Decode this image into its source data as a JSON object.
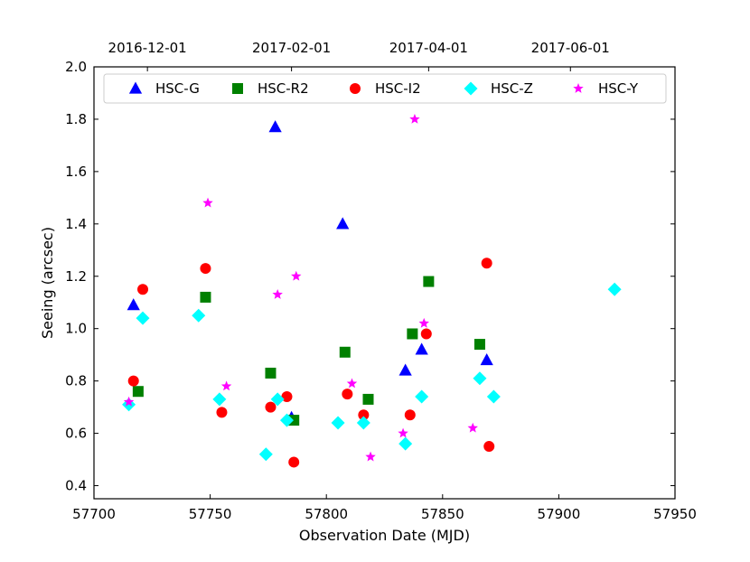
{
  "chart_data": {
    "type": "scatter",
    "title": "",
    "xlabel": "Observation Date (MJD)",
    "ylabel": "Seeing (arcsec)",
    "xlim": [
      57700,
      57950
    ],
    "ylim": [
      0.35,
      2.0
    ],
    "x_ticks": [
      57700,
      57750,
      57800,
      57850,
      57900,
      57950
    ],
    "y_ticks": [
      0.4,
      0.6,
      0.8,
      1.0,
      1.2,
      1.4,
      1.6,
      1.8,
      2.0
    ],
    "x_tick_labels": [
      "57700",
      "57750",
      "57800",
      "57850",
      "57900",
      "57950"
    ],
    "y_tick_labels": [
      "0.4",
      "0.6",
      "0.8",
      "1.0",
      "1.2",
      "1.4",
      "1.6",
      "1.8",
      "2.0"
    ],
    "top_axis": {
      "ticks": [
        "2016-12-01",
        "2017-02-01",
        "2017-04-01",
        "2017-06-01"
      ],
      "tick_mjd": [
        57723,
        57785,
        57844,
        57905
      ]
    },
    "grid": false,
    "legend_position": "top",
    "series": [
      {
        "name": "HSC-G",
        "marker": "triangle",
        "color": "#0000ff",
        "points": [
          [
            57717,
            1.09
          ],
          [
            57778,
            1.77
          ],
          [
            57785,
            0.66
          ],
          [
            57807,
            1.4
          ],
          [
            57834,
            0.84
          ],
          [
            57841,
            0.92
          ],
          [
            57869,
            0.88
          ]
        ]
      },
      {
        "name": "HSC-R2",
        "marker": "square",
        "color": "#008000",
        "points": [
          [
            57719,
            0.76
          ],
          [
            57748,
            1.12
          ],
          [
            57776,
            0.83
          ],
          [
            57786,
            0.65
          ],
          [
            57808,
            0.91
          ],
          [
            57818,
            0.73
          ],
          [
            57837,
            0.98
          ],
          [
            57844,
            1.18
          ],
          [
            57866,
            0.94
          ]
        ]
      },
      {
        "name": "HSC-I2",
        "marker": "circle",
        "color": "#ff0000",
        "points": [
          [
            57717,
            0.8
          ],
          [
            57721,
            1.15
          ],
          [
            57748,
            1.23
          ],
          [
            57755,
            0.68
          ],
          [
            57776,
            0.7
          ],
          [
            57783,
            0.74
          ],
          [
            57786,
            0.49
          ],
          [
            57809,
            0.75
          ],
          [
            57816,
            0.67
          ],
          [
            57836,
            0.67
          ],
          [
            57843,
            0.98
          ],
          [
            57869,
            1.25
          ],
          [
            57870,
            0.55
          ]
        ]
      },
      {
        "name": "HSC-Z",
        "marker": "diamond",
        "color": "#00ffff",
        "points": [
          [
            57715,
            0.71
          ],
          [
            57721,
            1.04
          ],
          [
            57745,
            1.05
          ],
          [
            57754,
            0.73
          ],
          [
            57774,
            0.52
          ],
          [
            57779,
            0.73
          ],
          [
            57783,
            0.65
          ],
          [
            57805,
            0.64
          ],
          [
            57816,
            0.64
          ],
          [
            57834,
            0.56
          ],
          [
            57841,
            0.74
          ],
          [
            57866,
            0.81
          ],
          [
            57872,
            0.74
          ],
          [
            57924,
            1.15
          ]
        ]
      },
      {
        "name": "HSC-Y",
        "marker": "star",
        "color": "#ff00ff",
        "points": [
          [
            57715,
            0.72
          ],
          [
            57749,
            1.48
          ],
          [
            57757,
            0.78
          ],
          [
            57779,
            1.13
          ],
          [
            57787,
            1.2
          ],
          [
            57811,
            0.79
          ],
          [
            57819,
            0.51
          ],
          [
            57833,
            0.6
          ],
          [
            57838,
            1.8
          ],
          [
            57842,
            1.02
          ],
          [
            57863,
            0.62
          ]
        ]
      }
    ]
  }
}
